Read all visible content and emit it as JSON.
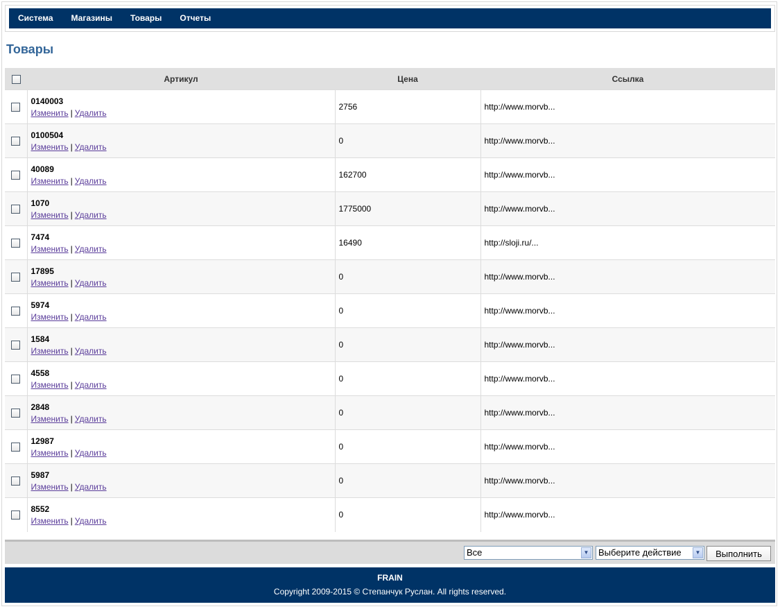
{
  "nav": {
    "items": [
      "Система",
      "Магазины",
      "Товары",
      "Отчеты"
    ]
  },
  "page": {
    "title": "Товары"
  },
  "table": {
    "headers": {
      "sku": "Артикул",
      "price": "Цена",
      "link": "Ссылка"
    },
    "edit_label": "Изменить",
    "delete_label": "Удалить",
    "separator": "|",
    "rows": [
      {
        "sku": "0140003",
        "price": "2756",
        "link": "http://www.morvb..."
      },
      {
        "sku": "0100504",
        "price": "0",
        "link": "http://www.morvb..."
      },
      {
        "sku": "40089",
        "price": "162700",
        "link": "http://www.morvb..."
      },
      {
        "sku": "1070",
        "price": "1775000",
        "link": "http://www.morvb..."
      },
      {
        "sku": "7474",
        "price": "16490",
        "link": "http://sloji.ru/..."
      },
      {
        "sku": "17895",
        "price": "0",
        "link": "http://www.morvb..."
      },
      {
        "sku": "5974",
        "price": "0",
        "link": "http://www.morvb..."
      },
      {
        "sku": "1584",
        "price": "0",
        "link": "http://www.morvb..."
      },
      {
        "sku": "4558",
        "price": "0",
        "link": "http://www.morvb..."
      },
      {
        "sku": "2848",
        "price": "0",
        "link": "http://www.morvb..."
      },
      {
        "sku": "12987",
        "price": "0",
        "link": "http://www.morvb..."
      },
      {
        "sku": "5987",
        "price": "0",
        "link": "http://www.morvb..."
      },
      {
        "sku": "8552",
        "price": "0",
        "link": "http://www.morvb..."
      }
    ]
  },
  "bulk": {
    "filter_value": "Все",
    "action_value": "Выберите действие",
    "execute_label": "Выполнить"
  },
  "footer": {
    "brand": "FRAIN",
    "copyright": "Copyright 2009-2015 © Степанчук Руслан. All rights reserved."
  },
  "colors": {
    "nav_bg": "#003366",
    "title": "#336699",
    "link": "#5a3c9a"
  }
}
